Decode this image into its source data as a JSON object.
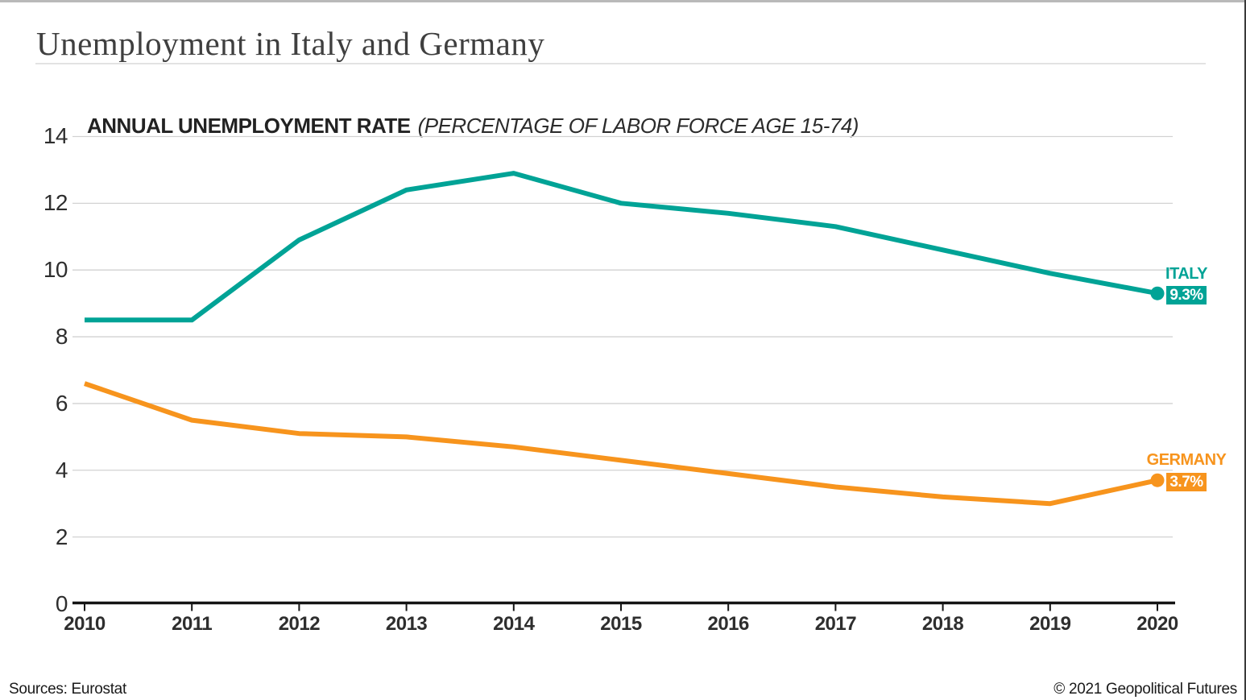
{
  "page": {
    "title": "Unemployment in Italy and Germany",
    "subtitle_bold": "ANNUAL UNEMPLOYMENT RATE",
    "subtitle_note": "(PERCENTAGE OF LABOR FORCE AGE 15-74)",
    "source": "Sources: Eurostat",
    "copyright": "© 2021 Geopolitical Futures"
  },
  "chart_data": {
    "type": "line",
    "title": "ANNUAL UNEMPLOYMENT RATE (PERCENTAGE OF LABOR FORCE AGE 15-74)",
    "x": [
      "2010",
      "2011",
      "2012",
      "2013",
      "2014",
      "2015",
      "2016",
      "2017",
      "2018",
      "2019",
      "2020"
    ],
    "series": [
      {
        "name": "ITALY",
        "color": "#00a396",
        "values": [
          8.5,
          8.5,
          10.9,
          12.4,
          12.9,
          12.0,
          11.7,
          11.3,
          10.6,
          9.9,
          9.3
        ],
        "end_label": "ITALY",
        "end_badge": "9.3%"
      },
      {
        "name": "GERMANY",
        "color": "#f7941d",
        "values": [
          6.6,
          5.5,
          5.1,
          5.0,
          4.7,
          4.3,
          3.9,
          3.5,
          3.2,
          3.0,
          3.7
        ],
        "end_label": "GERMANY",
        "end_badge": "3.7%"
      }
    ],
    "ylim": [
      0,
      14
    ],
    "ytick_step": 2,
    "yticks": [
      0,
      2,
      4,
      6,
      8,
      10,
      12,
      14
    ],
    "grid": true,
    "legend_position": "line-end-right",
    "grid_color": "#d2d2d2",
    "axis_color": "#141414"
  }
}
